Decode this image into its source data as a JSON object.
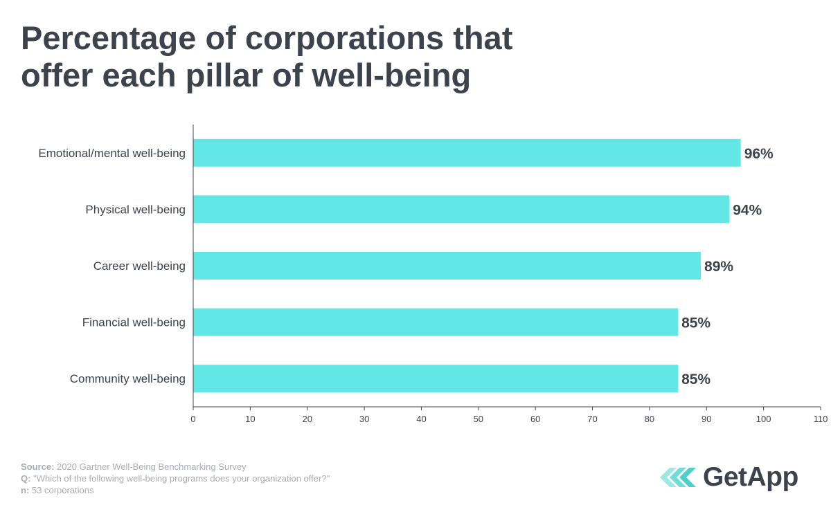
{
  "title": {
    "line1": "Percentage of corporations that",
    "line2": "offer each pillar of well-being"
  },
  "colors": {
    "bar": "#63e6e6",
    "text": "#3d434c",
    "muted": "#a9adb2",
    "logo_accent": "#5fd6d2"
  },
  "chart_data": {
    "type": "bar",
    "orientation": "horizontal",
    "categories": [
      "Emotional/mental well-being",
      "Physical well-being",
      "Career well-being",
      "Financial well-being",
      "Community well-being"
    ],
    "values": [
      96,
      94,
      89,
      85,
      85
    ],
    "value_labels": [
      "96%",
      "94%",
      "89%",
      "85%",
      "85%"
    ],
    "xlim": [
      0,
      110
    ],
    "xticks": [
      0,
      10,
      20,
      30,
      40,
      50,
      60,
      70,
      80,
      90,
      100,
      110
    ],
    "grid": false,
    "legend": "none"
  },
  "footer": {
    "source_label": "Source:",
    "source_text": "2020 Gartner Well-Being Benchmarking Survey",
    "q_label": "Q:",
    "q_text": "\"Which of the following well-being programs does your organization offer?\"",
    "n_label": "n:",
    "n_text": "53 corporations"
  },
  "logo": {
    "text": "GetApp",
    "icon": "getapp-chevrons-icon"
  }
}
